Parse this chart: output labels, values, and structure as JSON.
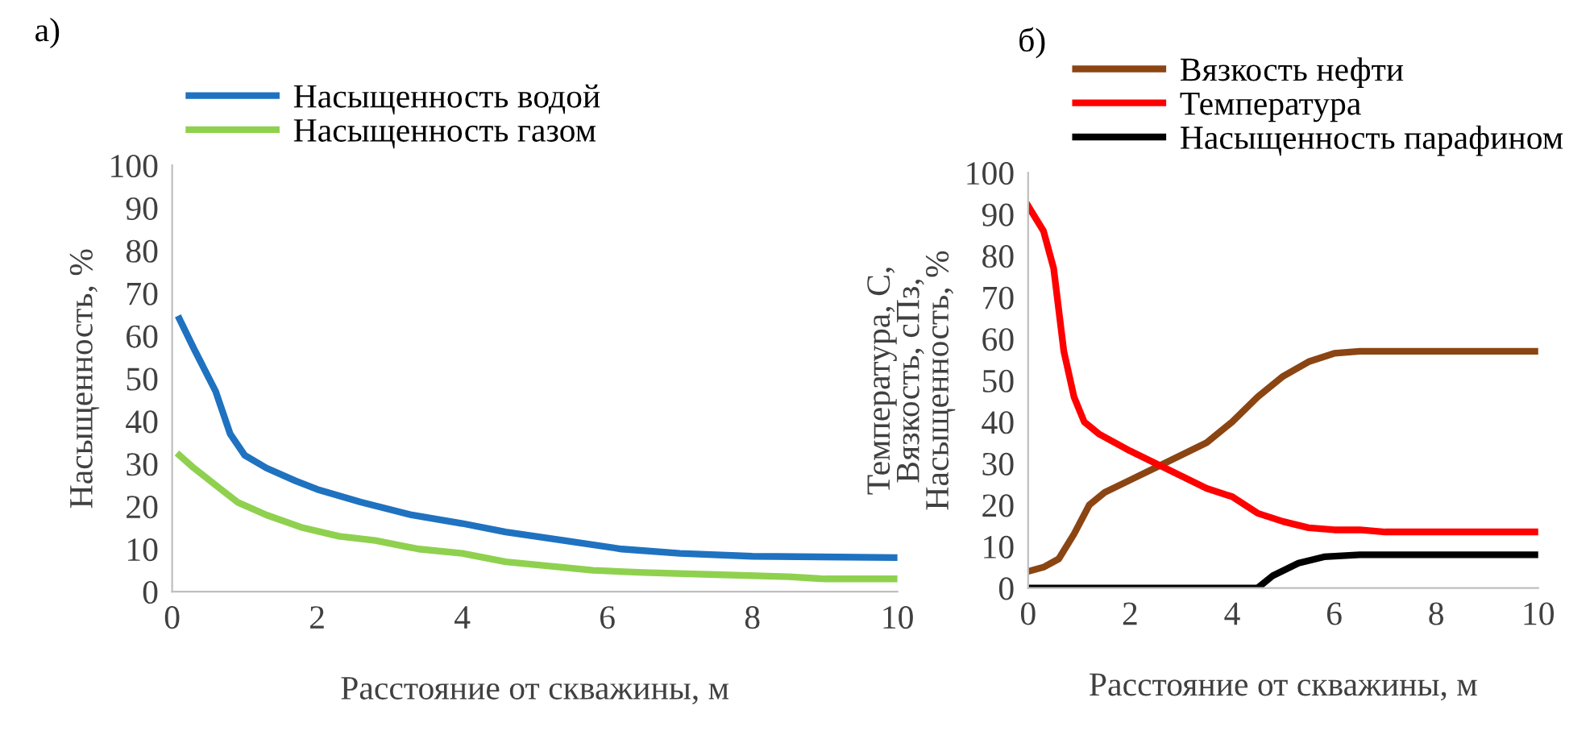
{
  "chart_data": [
    {
      "type": "line",
      "title": "а)",
      "xlabel": "Расстояние от скважины, м",
      "ylabel": "Насыщенность, %",
      "xlim": [
        0,
        10
      ],
      "ylim": [
        0,
        100
      ],
      "xticks": [
        0,
        2,
        4,
        6,
        8,
        10
      ],
      "yticks": [
        0,
        10,
        20,
        30,
        40,
        50,
        60,
        70,
        80,
        90,
        100
      ],
      "grid": false,
      "legend": "top",
      "marker": "none",
      "line_style": "solid",
      "series": [
        {
          "name": "Насыщенность водой",
          "color": "#1f72c0",
          "x": [
            0.1,
            0.3,
            0.6,
            0.8,
            1.0,
            1.3,
            1.7,
            2.0,
            2.6,
            3.3,
            4.0,
            4.6,
            5.4,
            6.2,
            7.0,
            8.0,
            10.0
          ],
          "values": [
            64,
            57,
            47,
            37,
            32,
            29,
            26,
            24,
            21,
            18,
            16,
            14,
            12,
            10,
            9,
            8.3,
            8
          ]
        },
        {
          "name": "Насыщенность газом",
          "color": "#8fd14f",
          "x": [
            0.1,
            0.3,
            0.6,
            0.9,
            1.3,
            1.8,
            2.3,
            2.8,
            3.4,
            4.0,
            4.6,
            5.2,
            5.8,
            6.5,
            7.5,
            8.5,
            9.0,
            10.0
          ],
          "values": [
            32,
            29,
            25,
            21,
            18,
            15,
            13,
            12,
            10,
            9,
            7,
            6,
            5,
            4.5,
            4,
            3.5,
            3,
            3
          ]
        }
      ]
    },
    {
      "type": "line",
      "title": "б)",
      "xlabel": "Расстояние от скважины, м",
      "ylabel": "Температура, С,\nВязкость, сПз,\nНасыщенность, %",
      "xlim": [
        0,
        10
      ],
      "ylim": [
        0,
        100
      ],
      "xticks": [
        0,
        2,
        4,
        6,
        8,
        10
      ],
      "yticks": [
        0,
        10,
        20,
        30,
        40,
        50,
        60,
        70,
        80,
        90,
        100
      ],
      "grid": false,
      "legend": "top",
      "marker": "none",
      "line_style": "solid",
      "series": [
        {
          "name": "Вязкость нефти",
          "color": "#8b4513",
          "x": [
            0,
            0.3,
            0.6,
            0.9,
            1.2,
            1.5,
            2,
            2.5,
            3,
            3.5,
            4,
            4.5,
            5,
            5.5,
            6,
            6.5,
            10
          ],
          "values": [
            4,
            5,
            7,
            13,
            20,
            23,
            26,
            29,
            32,
            35,
            40,
            46,
            51,
            54.5,
            56.5,
            57,
            57
          ]
        },
        {
          "name": "Температура",
          "color": "#ff0000",
          "x": [
            0,
            0.3,
            0.5,
            0.7,
            0.9,
            1.1,
            1.4,
            2,
            2.5,
            3,
            3.5,
            4,
            4.5,
            5,
            5.5,
            6,
            6.5,
            7,
            10
          ],
          "values": [
            92,
            86,
            77,
            57,
            46,
            40,
            37,
            33,
            30,
            27,
            24,
            22,
            18,
            16,
            14.5,
            14,
            14,
            13.5,
            13.5
          ]
        },
        {
          "name": "Насыщенность парафином",
          "color": "#000000",
          "x": [
            0,
            4.5,
            4.8,
            5.3,
            5.8,
            6.5,
            10
          ],
          "values": [
            0,
            0,
            3,
            6,
            7.5,
            8,
            8
          ]
        }
      ]
    }
  ]
}
